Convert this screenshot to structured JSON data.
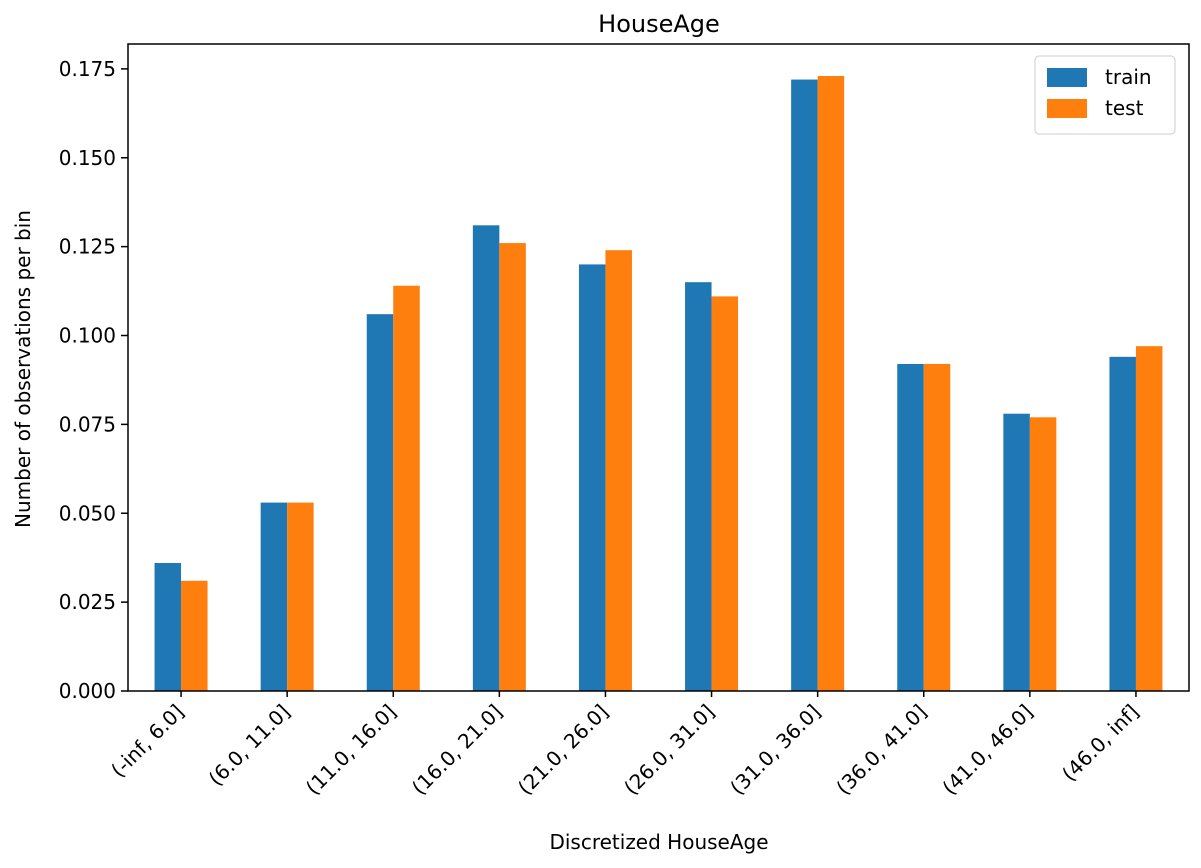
{
  "chart_data": {
    "type": "bar",
    "title": "HouseAge",
    "xlabel": "Discretized HouseAge",
    "ylabel": "Number of observations per bin",
    "categories": [
      "(-inf, 6.0]",
      "(6.0, 11.0]",
      "(11.0, 16.0]",
      "(16.0, 21.0]",
      "(21.0, 26.0]",
      "(26.0, 31.0]",
      "(31.0, 36.0]",
      "(36.0, 41.0]",
      "(41.0, 46.0]",
      "(46.0, inf]"
    ],
    "series": [
      {
        "name": "train",
        "color": "#1f77b4",
        "values": [
          0.036,
          0.053,
          0.106,
          0.131,
          0.12,
          0.115,
          0.172,
          0.092,
          0.078,
          0.094
        ]
      },
      {
        "name": "test",
        "color": "#ff7f0e",
        "values": [
          0.031,
          0.053,
          0.114,
          0.126,
          0.124,
          0.111,
          0.173,
          0.092,
          0.077,
          0.097
        ]
      }
    ],
    "yticks": [
      0.0,
      0.025,
      0.05,
      0.075,
      0.1,
      0.125,
      0.15,
      0.175
    ],
    "ytick_labels": [
      "0.000",
      "0.025",
      "0.050",
      "0.075",
      "0.100",
      "0.125",
      "0.150",
      "0.175"
    ],
    "ylim": [
      0,
      0.182
    ],
    "grid": false,
    "legend_position": "top-right",
    "xtick_rotation": "45 degrees"
  }
}
